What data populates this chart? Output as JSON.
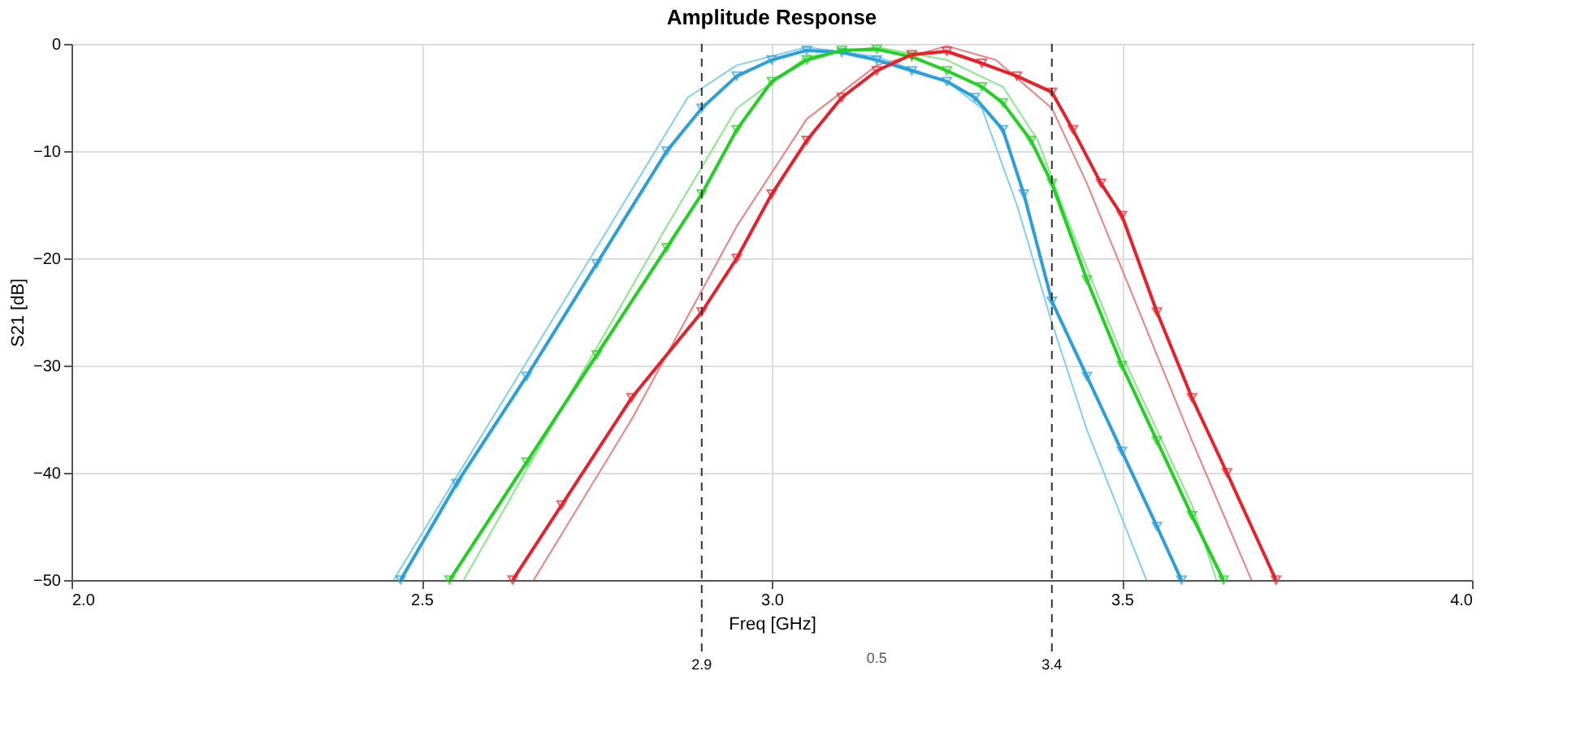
{
  "chart_data": {
    "type": "line",
    "title": "Amplitude Response",
    "xlabel": "Freq [GHz]",
    "ylabel": "S21 [dB]",
    "xlim": [
      2.0,
      4.0
    ],
    "xticks": [
      {
        "value": 2,
        "label": "2.0"
      },
      2.5,
      {
        "value": 3,
        "label": "3.0"
      },
      3.5,
      {
        "value": 4,
        "label": "4.0"
      }
    ],
    "ylim": [
      -50,
      0
    ],
    "yticks": [
      -50,
      -40,
      -30,
      -20,
      -10,
      0
    ],
    "grid": true,
    "line_style": "solid",
    "series": [
      {
        "color": "#7fd0f0",
        "marker": "none",
        "x": [
          2.46,
          2.6,
          2.75,
          2.88,
          2.95,
          3.05,
          3.15,
          3.25,
          3.3,
          3.35,
          3.4,
          3.45,
          3.535
        ],
        "values": [
          -50,
          -35,
          -19,
          -5,
          -2,
          -0.3,
          -1.2,
          -3.5,
          -6,
          -15,
          -26,
          -36,
          -50
        ]
      },
      {
        "color": "#88e888",
        "marker": "none",
        "x": [
          2.56,
          2.7,
          2.85,
          2.95,
          3.05,
          3.15,
          3.25,
          3.33,
          3.38,
          3.42,
          3.5,
          3.6,
          3.635
        ],
        "values": [
          -50,
          -34,
          -17,
          -6,
          -1.2,
          -0.3,
          -1.5,
          -4,
          -9,
          -16,
          -29,
          -43,
          -50
        ]
      },
      {
        "color": "#f08080",
        "marker": "none",
        "x": [
          2.66,
          2.8,
          2.95,
          3.05,
          3.15,
          3.25,
          3.32,
          3.4,
          3.45,
          3.55,
          3.6,
          3.685
        ],
        "values": [
          -50,
          -35,
          -17,
          -7,
          -2,
          -0.2,
          -1.5,
          -6,
          -13,
          -29,
          -37,
          -50
        ]
      },
      {
        "color": "#2a9fdc",
        "marker": "triangle",
        "x": [
          2.47,
          2.55,
          2.65,
          2.75,
          2.85,
          2.9,
          2.95,
          3.0,
          3.05,
          3.1,
          3.15,
          3.2,
          3.25,
          3.29,
          3.33,
          3.36,
          3.4,
          3.45,
          3.5,
          3.55,
          3.585
        ],
        "values": [
          -50,
          -41,
          -31,
          -20.5,
          -10,
          -6,
          -3,
          -1.5,
          -0.6,
          -0.8,
          -1.5,
          -2.5,
          -3.5,
          -5,
          -8,
          -14,
          -24,
          -31,
          -38,
          -45,
          -50
        ]
      },
      {
        "color": "#22d022",
        "marker": "triangle",
        "x": [
          2.54,
          2.65,
          2.75,
          2.85,
          2.9,
          2.95,
          3.0,
          3.05,
          3.1,
          3.15,
          3.2,
          3.25,
          3.3,
          3.33,
          3.37,
          3.4,
          3.45,
          3.5,
          3.55,
          3.6,
          3.645
        ],
        "values": [
          -50,
          -39,
          -29,
          -19,
          -14,
          -8,
          -3.5,
          -1.5,
          -0.6,
          -0.5,
          -1.2,
          -2.5,
          -4,
          -5.5,
          -9,
          -13,
          -22,
          -30,
          -37,
          -44,
          -50
        ]
      },
      {
        "color": "#e8202a",
        "marker": "triangle",
        "x": [
          2.63,
          2.7,
          2.8,
          2.9,
          2.95,
          3.0,
          3.05,
          3.1,
          3.15,
          3.2,
          3.25,
          3.3,
          3.35,
          3.4,
          3.43,
          3.47,
          3.5,
          3.55,
          3.6,
          3.65,
          3.72
        ],
        "values": [
          -50,
          -43,
          -33,
          -25,
          -20,
          -14,
          -9,
          -5,
          -2.5,
          -1,
          -0.7,
          -1.8,
          -3,
          -4.5,
          -8,
          -13,
          -16,
          -25,
          -33,
          -40,
          -50
        ]
      }
    ],
    "ref_lines": [
      {
        "axis": "x",
        "value": 2.9,
        "label": "2.9",
        "color": "#333333",
        "line_style": "dashed"
      },
      {
        "axis": "x",
        "value": 3.4,
        "label": "3.4",
        "color": "#333333",
        "line_style": "dashed"
      }
    ],
    "annotations": [
      "0.5"
    ]
  }
}
